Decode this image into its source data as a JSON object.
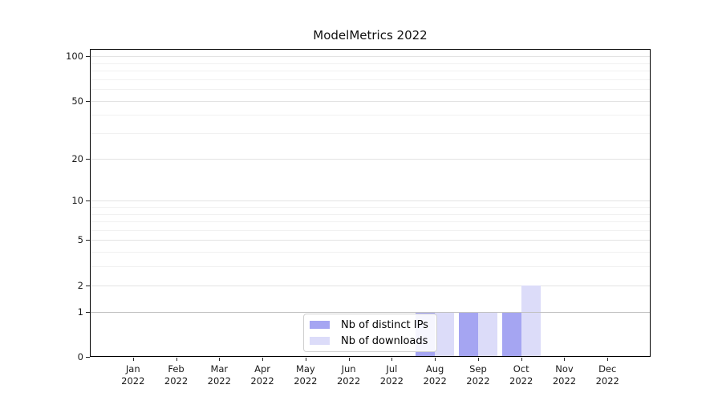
{
  "chart_data": {
    "type": "bar",
    "title": "ModelMetrics 2022",
    "categories": [
      "Jan",
      "Feb",
      "Mar",
      "Apr",
      "May",
      "Jun",
      "Jul",
      "Aug",
      "Sep",
      "Oct",
      "Nov",
      "Dec"
    ],
    "year_label": "2022",
    "series": [
      {
        "name": "Nb of distinct IPs",
        "color": "#a5a5f2",
        "values": [
          0,
          0,
          0,
          0,
          0,
          0,
          0,
          1,
          1,
          1,
          0,
          0
        ]
      },
      {
        "name": "Nb of downloads",
        "color": "#dcdcf9",
        "values": [
          0,
          0,
          0,
          0,
          0,
          0,
          0,
          1,
          1,
          2,
          0,
          0
        ]
      }
    ],
    "yscale": "log1p",
    "yticks": [
      0,
      1,
      2,
      5,
      10,
      20,
      50,
      100
    ],
    "minor_gridline_values": [
      3,
      4,
      6,
      7,
      8,
      9,
      30,
      40,
      60,
      70,
      80,
      90
    ],
    "emphasized_gridline_value": 1,
    "ylim": [
      0,
      112
    ],
    "xlabel": "",
    "ylabel": "",
    "grid": "horizontal",
    "legend_position": "inside-bottom-center-left",
    "colors": {
      "grid_major": "#e3e3e3",
      "grid_minor": "#f1f1f1",
      "grid_emphasis": "#c2c2c2",
      "axis": "#000000",
      "background": "#ffffff"
    }
  }
}
